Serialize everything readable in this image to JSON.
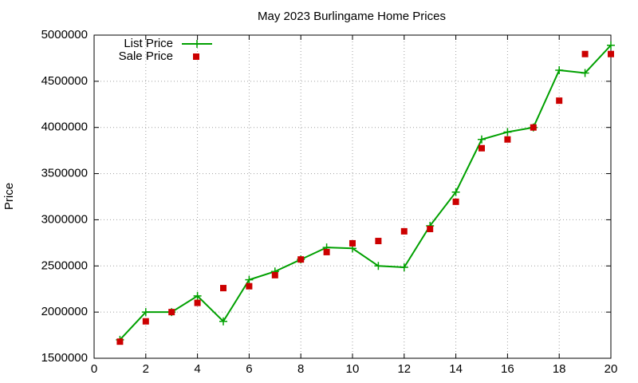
{
  "chart_data": {
    "type": "line",
    "title": "May 2023 Burlingame Home Prices",
    "y_label": "Price",
    "x": [
      1,
      2,
      3,
      4,
      5,
      6,
      7,
      8,
      9,
      10,
      11,
      12,
      13,
      14,
      15,
      16,
      17,
      18,
      19,
      20
    ],
    "series": [
      {
        "name": "List Price",
        "color": "#00a000",
        "style": "linespoints",
        "values": [
          1700000,
          2000000,
          2000000,
          2175000,
          1900000,
          2350000,
          2440000,
          2570000,
          2700000,
          2690000,
          2500000,
          2485000,
          2935000,
          3300000,
          3870000,
          3950000,
          4000000,
          4620000,
          4590000,
          4890000
        ]
      },
      {
        "name": "Sale Price",
        "color": "#cc0000",
        "style": "points",
        "values": [
          1680000,
          1900000,
          2000000,
          2100000,
          2260000,
          2280000,
          2400000,
          2570000,
          2650000,
          2745000,
          2770000,
          2875000,
          2900000,
          3195000,
          3775000,
          3870000,
          4000000,
          4290000,
          4795000,
          4795000
        ]
      }
    ],
    "xlim": [
      0,
      20
    ],
    "xticks": [
      0,
      2,
      4,
      6,
      8,
      10,
      12,
      14,
      16,
      18,
      20
    ],
    "ylim": [
      1500000,
      5000000
    ],
    "yticks": [
      1500000,
      2000000,
      2500000,
      3000000,
      3500000,
      4000000,
      4500000,
      5000000
    ],
    "grid": true,
    "legend": "top-left"
  }
}
